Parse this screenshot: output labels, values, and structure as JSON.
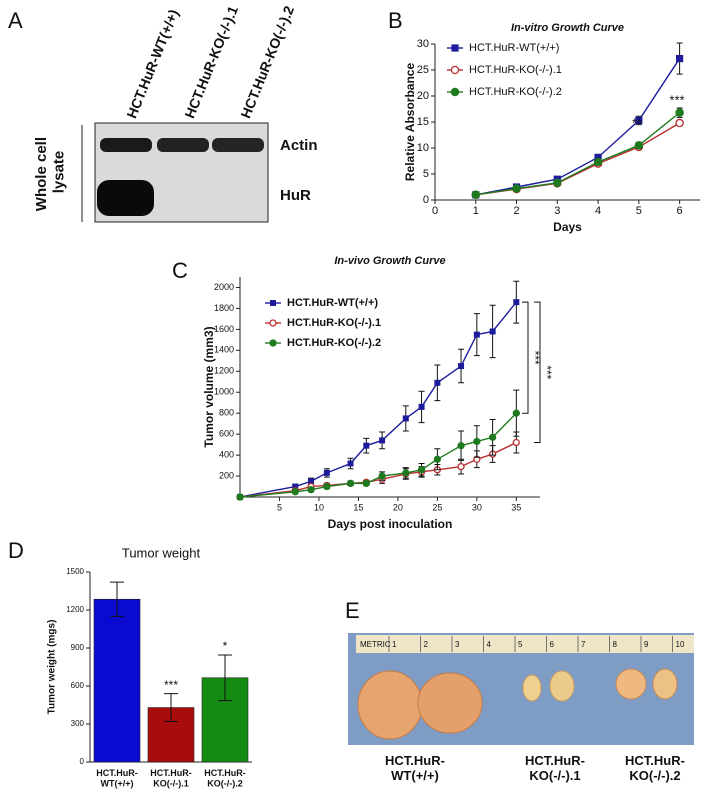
{
  "panel_labels": [
    "A",
    "B",
    "C",
    "D",
    "E"
  ],
  "blot": {
    "lanes": [
      "HCT.HuR-WT(+/+)",
      "HCT.HuR-KO(-/-).1",
      "HCT.HuR-KO(-/-).2"
    ],
    "side_label": "Whole cell lysate",
    "bands": [
      "Actin",
      "HuR"
    ]
  },
  "chart_data": [
    {
      "type": "line",
      "title": "In-vitro Growth Curve",
      "x_label": "Days",
      "y_label": "Relative Absorbance",
      "x": [
        1,
        2,
        3,
        4,
        5,
        6
      ],
      "xlim": [
        0,
        6.5
      ],
      "xticks": [
        0,
        1,
        2,
        3,
        4,
        5,
        6
      ],
      "ylim": [
        0,
        30
      ],
      "yticks": [
        0,
        5,
        10,
        15,
        20,
        25,
        30
      ],
      "legend": "upper left",
      "series": [
        {
          "name": "HCT.HuR-WT(+/+)",
          "color": "#1c1c9c",
          "marker": "square",
          "values": [
            1.0,
            2.5,
            4.0,
            8.2,
            15.3,
            27.2
          ],
          "errors": [
            0.2,
            0.3,
            0.5,
            0.4,
            0.8,
            3.0
          ]
        },
        {
          "name": "HCT.HuR-KO(-/-).1",
          "color": "#b83030",
          "marker": "open-circle",
          "values": [
            1.0,
            2.1,
            3.2,
            7.0,
            10.2,
            14.8
          ],
          "errors": [
            0.1,
            0.2,
            0.3,
            0.3,
            0.5,
            0.5
          ]
        },
        {
          "name": "HCT.HuR-KO(-/-).2",
          "color": "#1e7a1e",
          "marker": "circle",
          "values": [
            1.0,
            2.2,
            3.3,
            7.3,
            10.5,
            16.8
          ],
          "errors": [
            0.1,
            0.2,
            0.3,
            0.3,
            0.6,
            0.9
          ]
        }
      ],
      "annotations": [
        "**",
        "***"
      ]
    },
    {
      "type": "line",
      "title": "In-vivo Growth Curve",
      "x_label": "Days post inoculation",
      "y_label": "Tumor volume (mm3)",
      "x": [
        0,
        7,
        9,
        11,
        14,
        16,
        18,
        21,
        23,
        25,
        28,
        30,
        32,
        35
      ],
      "xlim": [
        0,
        38
      ],
      "xticks": [
        5,
        10,
        15,
        20,
        25,
        30,
        35
      ],
      "ylim": [
        0,
        2100
      ],
      "yticks": [
        200,
        400,
        600,
        800,
        1000,
        1200,
        1400,
        1600,
        1800,
        2000
      ],
      "legend": "upper left",
      "series": [
        {
          "name": "HCT.HuR-WT(+/+)",
          "color": "#1c1c9c",
          "marker": "square",
          "values": [
            0,
            100,
            150,
            230,
            320,
            490,
            540,
            750,
            860,
            1090,
            1250,
            1550,
            1580,
            1860
          ],
          "errors": [
            0,
            20,
            30,
            40,
            50,
            70,
            80,
            120,
            150,
            170,
            160,
            200,
            250,
            200
          ]
        },
        {
          "name": "HCT.HuR-KO(-/-).1",
          "color": "#b83030",
          "marker": "open-circle",
          "values": [
            0,
            60,
            100,
            110,
            130,
            140,
            170,
            220,
            240,
            260,
            290,
            360,
            410,
            520
          ],
          "errors": [
            0,
            10,
            20,
            20,
            20,
            20,
            40,
            50,
            50,
            50,
            70,
            80,
            80,
            100
          ]
        },
        {
          "name": "HCT.HuR-KO(-/-).2",
          "color": "#1e7a1e",
          "marker": "circle",
          "values": [
            0,
            50,
            70,
            100,
            130,
            130,
            200,
            230,
            260,
            360,
            490,
            530,
            570,
            800
          ],
          "errors": [
            0,
            10,
            20,
            20,
            20,
            20,
            40,
            50,
            60,
            100,
            140,
            150,
            170,
            220
          ]
        }
      ],
      "annotations": [
        "***",
        "***"
      ]
    },
    {
      "type": "bar",
      "title": "Tumor weight",
      "y_label": "Tumor weight (mgs)",
      "categories": [
        "HCT.HuR-WT(+/+)",
        "HCT.HuR-KO(-/-).1",
        "HCT.HuR-KO(-/-).2"
      ],
      "values": [
        1285,
        430,
        665
      ],
      "errors": [
        135,
        110,
        180
      ],
      "colors": [
        "#0a0ad0",
        "#a80c0c",
        "#148c14"
      ],
      "significance": [
        null,
        "***",
        "*"
      ],
      "ylim": [
        0,
        1500
      ],
      "yticks": [
        0,
        300,
        600,
        900,
        1200,
        1500
      ]
    }
  ],
  "photo": {
    "ruler_label": "METRIC",
    "ruler_numbers": [
      1,
      2,
      3,
      4,
      5,
      6,
      7,
      8,
      9,
      10
    ],
    "labels": [
      "HCT.HuR-WT(+/+)",
      "HCT.HuR-KO(-/-).1",
      "HCT.HuR-KO(-/-).2"
    ]
  }
}
